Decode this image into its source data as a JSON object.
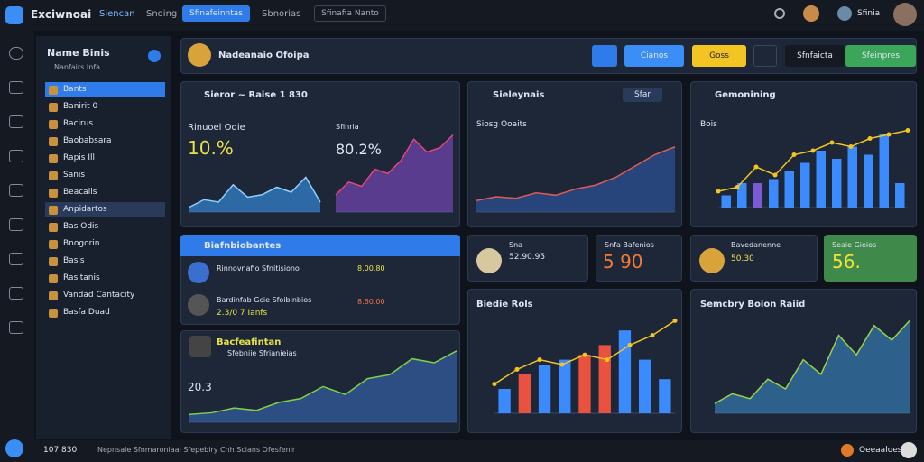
{
  "header": {
    "brand": "Exciwnoai",
    "nav": [
      "Siencan",
      "Snoing",
      "Sfinafeinntas",
      "Sbnorias"
    ],
    "search": "Sfinafia Nanto",
    "user": "Sfinia"
  },
  "sidebar": {
    "title": "Name Binis",
    "subtitle": "Nanfairs Infa",
    "items": [
      "Bants",
      "Banirit 0",
      "Racirus",
      "Baobabsara",
      "Rapis Ill",
      "Sanis",
      "Beacalis",
      "Anpidartos",
      "Bas Odis",
      "Bnogorin",
      "Basis",
      "Rasitanis",
      "Vandad Cantacity",
      "Basfa Duad"
    ]
  },
  "toolbar": {
    "name": "Nadeanaio Ofoipa",
    "buttons": [
      "Cianos",
      "Goss",
      "Sfnfaicta",
      "Sfeinpres"
    ]
  },
  "panels": {
    "a": {
      "title": "Sieror ~ Raise 1 830",
      "left_title": "Rinuoel Odie",
      "left_value": "10.%",
      "right_title": "Sfinria",
      "right_value": "80.2%"
    },
    "b": {
      "title": "Sieleynais",
      "subtitle": "Siosg Ooaits",
      "badge": "Sfar"
    },
    "c": {
      "title": "Gemonining",
      "subtitle": "Bois"
    },
    "d": {
      "title": "Biafnbiobantes",
      "rows": [
        {
          "name": "Rinnovnafio Sfnitisiono",
          "value": "8.00.80"
        },
        {
          "name": "Bardinfab Gcie Sfoibinbios",
          "sub": "2.3/0 7 Ianfs",
          "value": "8.60.00"
        }
      ]
    },
    "e": {
      "title": "Bacfeafintan",
      "subtitle": "Sfebniie Sfrianieias",
      "value": "20.3"
    },
    "f": {
      "title": "Biedie Rols"
    },
    "g": {
      "title": "Semcbry Boion Raiid"
    },
    "cards": [
      {
        "title": "Sna",
        "value": "52.90.95"
      },
      {
        "title": "Snfa Bafenios",
        "value": "5 90"
      },
      {
        "title": "Bavedanenne",
        "value": "50.30"
      },
      {
        "title": "Seaie Gieios",
        "value": "56."
      }
    ]
  },
  "charts": [
    {
      "type": "area",
      "color": "#3aa0ff",
      "values": [
        10,
        25,
        20,
        55,
        30,
        35,
        50,
        40,
        70,
        20
      ]
    },
    {
      "type": "area",
      "color": "#8a4fd6",
      "line": "#e0457a",
      "values": [
        20,
        35,
        30,
        50,
        45,
        60,
        85,
        70,
        75,
        90
      ]
    },
    {
      "type": "area",
      "color": "#2f5fb0",
      "line": "#e05a5a",
      "values": [
        15,
        20,
        18,
        25,
        22,
        30,
        35,
        45,
        60,
        75,
        85
      ]
    },
    {
      "type": "barline",
      "bars": [
        15,
        30,
        30,
        35,
        45,
        55,
        70,
        60,
        75,
        65,
        90,
        30
      ],
      "colors": [
        "#3b8bff",
        "#3b8bff",
        "#7b5ad6",
        "#3b8bff",
        "#3b8bff",
        "#3b8bff",
        "#3b8bff",
        "#3b8bff",
        "#3b8bff",
        "#3b8bff",
        "#3b8bff",
        "#3b8bff"
      ],
      "values": [
        20,
        25,
        50,
        40,
        65,
        70,
        80,
        75,
        85,
        90,
        95
      ]
    },
    {
      "type": "area",
      "color": "#3a6fc0",
      "line": "#7fd04a",
      "values": [
        10,
        12,
        18,
        15,
        25,
        30,
        45,
        35,
        55,
        60,
        80,
        75,
        90
      ]
    },
    {
      "type": "barline",
      "bars": [
        25,
        40,
        50,
        55,
        60,
        70,
        85,
        55,
        35
      ],
      "colors": [
        "#3b8bff",
        "#e8523f",
        "#3b8bff",
        "#3b8bff",
        "#e8523f",
        "#e8523f",
        "#3b8bff",
        "#3b8bff",
        "#3b8bff"
      ],
      "values": [
        30,
        45,
        55,
        50,
        60,
        55,
        70,
        80,
        95
      ]
    },
    {
      "type": "area",
      "color": "#3a8fd0",
      "line": "#9ad24a",
      "values": [
        10,
        20,
        15,
        35,
        25,
        55,
        40,
        80,
        60,
        90,
        75,
        95
      ]
    }
  ],
  "footer": {
    "left": "107 830",
    "text": "Nepnsaie Sfnmaroniaal Sfepebiry Cnh Scians Ofesfenir",
    "right": "Oeeaaloes"
  }
}
